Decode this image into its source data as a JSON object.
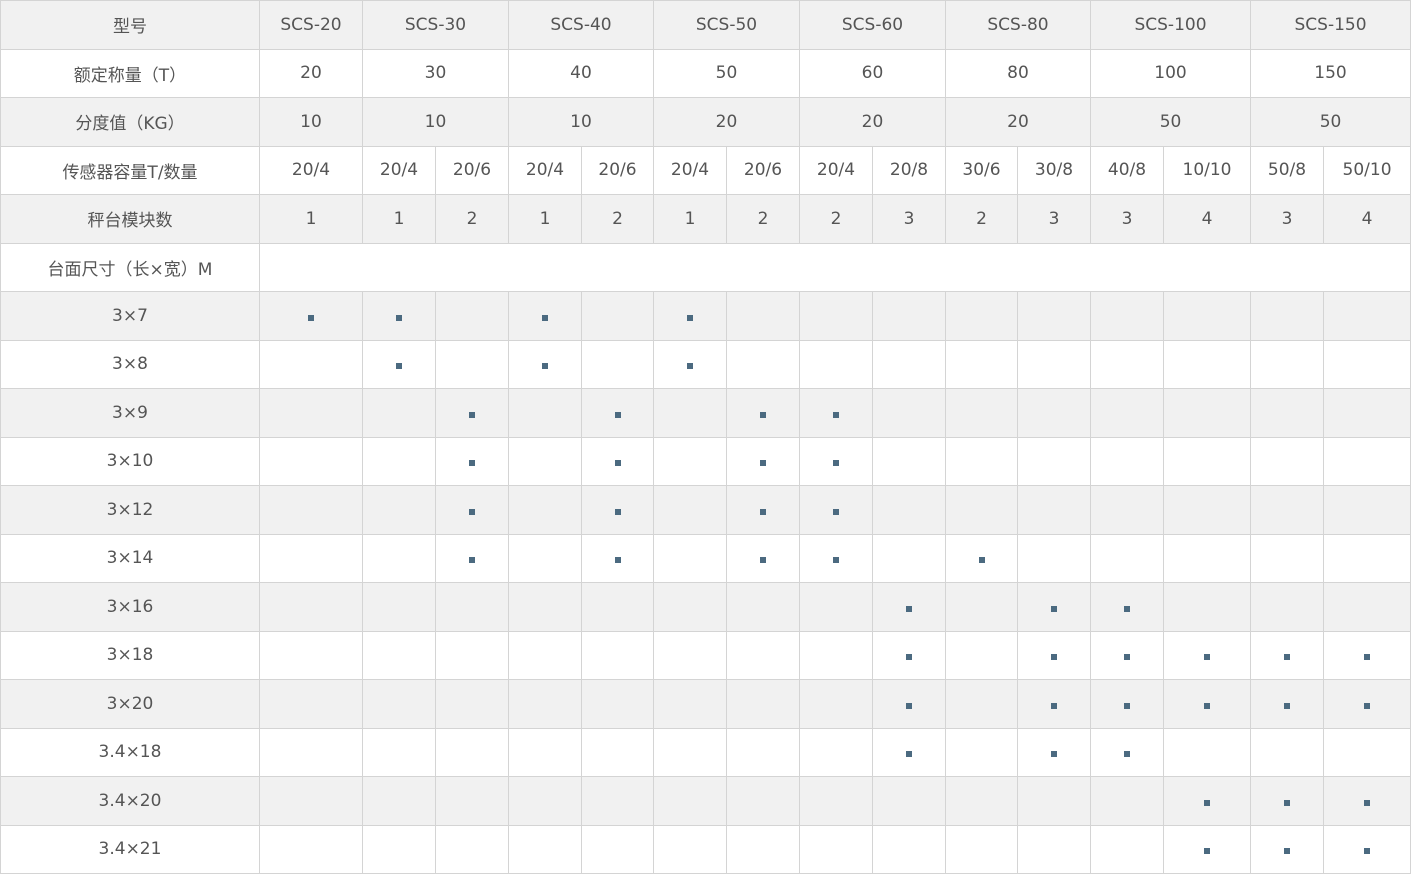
{
  "table": {
    "model_label": "型号",
    "capacity_label": "额定称量（T）",
    "division_label": "分度值（KG）",
    "sensor_label": "传感器容量T/数量",
    "modules_label": "秤台模块数",
    "size_label": "台面尺寸（长×宽）M",
    "models": [
      {
        "name": "SCS-20",
        "capacity": "20",
        "division": "10",
        "span": 1
      },
      {
        "name": "SCS-30",
        "capacity": "30",
        "division": "10",
        "span": 2
      },
      {
        "name": "SCS-40",
        "capacity": "40",
        "division": "10",
        "span": 2
      },
      {
        "name": "SCS-50",
        "capacity": "50",
        "division": "20",
        "span": 2
      },
      {
        "name": "SCS-60",
        "capacity": "60",
        "division": "20",
        "span": 2
      },
      {
        "name": "SCS-80",
        "capacity": "80",
        "division": "20",
        "span": 2
      },
      {
        "name": "SCS-100",
        "capacity": "100",
        "division": "50",
        "span": 2
      },
      {
        "name": "SCS-150",
        "capacity": "150",
        "division": "50",
        "span": 2
      }
    ],
    "sensors": [
      "20/4",
      "20/4",
      "20/6",
      "20/4",
      "20/6",
      "20/4",
      "20/6",
      "20/4",
      "20/8",
      "30/6",
      "30/8",
      "40/8",
      "10/10",
      "50/8",
      "50/10"
    ],
    "modules": [
      "1",
      "1",
      "2",
      "1",
      "2",
      "1",
      "2",
      "2",
      "3",
      "2",
      "3",
      "3",
      "4",
      "3",
      "4"
    ],
    "sizes": [
      {
        "size": "3×7",
        "marks": [
          0,
          1,
          3,
          5
        ]
      },
      {
        "size": "3×8",
        "marks": [
          1,
          3,
          5
        ]
      },
      {
        "size": "3×9",
        "marks": [
          2,
          4,
          6,
          7
        ]
      },
      {
        "size": "3×10",
        "marks": [
          2,
          4,
          6,
          7
        ]
      },
      {
        "size": "3×12",
        "marks": [
          2,
          4,
          6,
          7
        ]
      },
      {
        "size": "3×14",
        "marks": [
          2,
          4,
          6,
          7,
          9
        ]
      },
      {
        "size": "3×16",
        "marks": [
          8,
          10,
          11
        ]
      },
      {
        "size": "3×18",
        "marks": [
          8,
          10,
          11,
          12,
          13,
          14
        ]
      },
      {
        "size": "3×20",
        "marks": [
          8,
          10,
          11,
          12,
          13,
          14
        ]
      },
      {
        "size": "3.4×18",
        "marks": [
          8,
          10,
          11
        ]
      },
      {
        "size": "3.4×20",
        "marks": [
          12,
          13,
          14
        ]
      },
      {
        "size": "3.4×21",
        "marks": [
          12,
          13,
          14
        ]
      }
    ],
    "mark_color": "#4b6a80"
  }
}
